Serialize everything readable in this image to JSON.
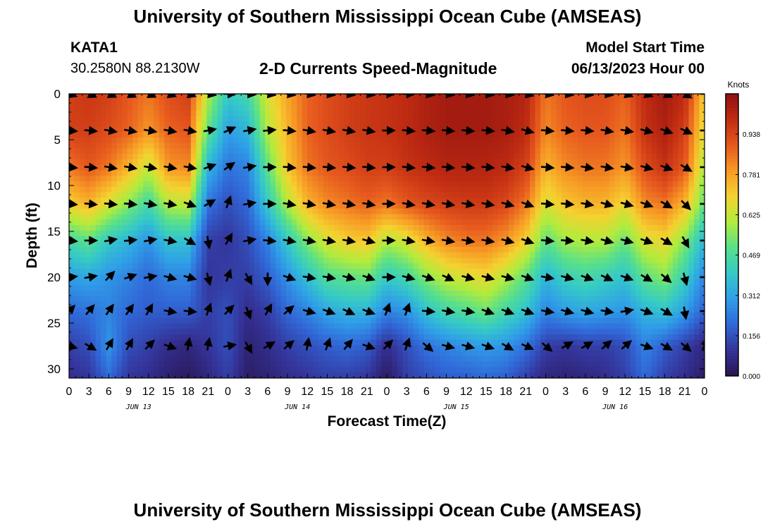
{
  "page": {
    "title": "University of Southern Mississippi Ocean Cube (AMSEAS)",
    "title_repeat": "University of Southern Mississippi Ocean Cube (AMSEAS)",
    "station_id": "KATA1",
    "station_coords": "30.2580N  88.2130W",
    "product": "2-D Currents Speed-Magnitude",
    "model_start_label": "Model Start Time",
    "model_start_value": "06/13/2023 Hour 00"
  },
  "chart_data": {
    "type": "heatmap",
    "title": "2-D Currents Speed-Magnitude",
    "xlabel": "Forecast Time(Z)",
    "ylabel": "Depth (ft)",
    "xlim": [
      0,
      96
    ],
    "ylim": [
      31,
      0
    ],
    "y_ticks": [
      0,
      5,
      10,
      15,
      20,
      25,
      30
    ],
    "x_tick_labels": [
      "0",
      "3",
      "6",
      "9",
      "12",
      "15",
      "18",
      "21",
      "0",
      "3",
      "6",
      "9",
      "12",
      "15",
      "18",
      "21",
      "0",
      "3",
      "6",
      "9",
      "12",
      "15",
      "18",
      "21",
      "0",
      "3",
      "6",
      "9",
      "12",
      "15",
      "18",
      "21",
      "0"
    ],
    "day_labels": [
      {
        "text": "JUN 13",
        "hour": 10.5
      },
      {
        "text": "JUN 14",
        "hour": 34.5
      },
      {
        "text": "JUN 15",
        "hour": 58.5
      },
      {
        "text": "JUN 16",
        "hour": 82.5
      }
    ],
    "colorbar": {
      "unit": "Knots",
      "ticks": [
        "0.000",
        "0.156",
        "0.312",
        "0.469",
        "0.625",
        "0.781",
        "0.938"
      ],
      "range": [
        0,
        1.094
      ]
    },
    "colormap": [
      "#2a1450",
      "#34349a",
      "#3168d8",
      "#2f9ee8",
      "#35c9c8",
      "#58e08a",
      "#b2ec3c",
      "#f4d230",
      "#f79a25",
      "#e6581e",
      "#c02c12",
      "#8e1010"
    ],
    "depths_ft": [
      0,
      4,
      8,
      12,
      16,
      20,
      23.7,
      27.5,
      31
    ],
    "times_h": [
      0,
      3,
      6,
      9,
      12,
      15,
      18,
      21,
      24,
      27,
      30,
      33,
      36,
      39,
      42,
      45,
      48,
      51,
      54,
      57,
      60,
      63,
      66,
      69,
      72,
      75,
      78,
      81,
      84,
      87,
      90,
      93,
      96
    ],
    "speed_knots": [
      [
        0.95,
        0.97,
        0.95,
        0.9,
        0.85,
        0.92,
        0.95,
        0.6,
        0.4,
        0.45,
        0.65,
        0.78,
        0.88,
        0.92,
        0.95,
        0.97,
        0.98,
        1.0,
        1.03,
        1.05,
        1.05,
        1.05,
        1.04,
        1.02,
        0.85,
        0.9,
        0.92,
        0.92,
        0.88,
        1.0,
        1.05,
        1.0,
        0.7
      ],
      [
        0.95,
        0.95,
        0.92,
        0.88,
        0.8,
        0.88,
        0.9,
        0.5,
        0.3,
        0.35,
        0.6,
        0.75,
        0.88,
        0.92,
        0.95,
        0.97,
        0.98,
        1.0,
        1.03,
        1.05,
        1.05,
        1.05,
        1.04,
        1.0,
        0.82,
        0.88,
        0.9,
        0.9,
        0.85,
        0.98,
        1.03,
        0.95,
        0.65
      ],
      [
        0.85,
        0.9,
        0.85,
        0.75,
        0.62,
        0.8,
        0.82,
        0.35,
        0.22,
        0.25,
        0.5,
        0.72,
        0.85,
        0.9,
        0.92,
        0.95,
        0.95,
        0.98,
        1.0,
        1.02,
        1.02,
        1.02,
        1.0,
        0.95,
        0.75,
        0.82,
        0.85,
        0.85,
        0.8,
        0.92,
        0.98,
        0.9,
        0.58
      ],
      [
        0.7,
        0.75,
        0.65,
        0.55,
        0.45,
        0.6,
        0.62,
        0.22,
        0.15,
        0.2,
        0.4,
        0.6,
        0.75,
        0.82,
        0.85,
        0.88,
        0.85,
        0.9,
        0.93,
        0.95,
        0.96,
        0.96,
        0.93,
        0.85,
        0.65,
        0.72,
        0.75,
        0.75,
        0.68,
        0.82,
        0.85,
        0.75,
        0.5
      ],
      [
        0.45,
        0.5,
        0.4,
        0.35,
        0.28,
        0.38,
        0.38,
        0.12,
        0.1,
        0.15,
        0.25,
        0.4,
        0.55,
        0.65,
        0.7,
        0.72,
        0.6,
        0.65,
        0.75,
        0.82,
        0.85,
        0.85,
        0.8,
        0.7,
        0.5,
        0.58,
        0.6,
        0.6,
        0.52,
        0.65,
        0.68,
        0.55,
        0.35
      ],
      [
        0.3,
        0.32,
        0.28,
        0.25,
        0.2,
        0.25,
        0.25,
        0.1,
        0.12,
        0.12,
        0.18,
        0.28,
        0.38,
        0.48,
        0.5,
        0.52,
        0.4,
        0.45,
        0.55,
        0.62,
        0.65,
        0.68,
        0.6,
        0.5,
        0.35,
        0.42,
        0.45,
        0.42,
        0.38,
        0.5,
        0.55,
        0.42,
        0.25
      ],
      [
        0.2,
        0.22,
        0.25,
        0.2,
        0.18,
        0.18,
        0.18,
        0.12,
        0.15,
        0.08,
        0.12,
        0.2,
        0.25,
        0.32,
        0.35,
        0.35,
        0.25,
        0.28,
        0.38,
        0.45,
        0.48,
        0.52,
        0.45,
        0.38,
        0.25,
        0.3,
        0.32,
        0.3,
        0.28,
        0.35,
        0.38,
        0.3,
        0.18
      ],
      [
        0.12,
        0.15,
        0.28,
        0.15,
        0.12,
        0.08,
        0.06,
        0.1,
        0.15,
        0.05,
        0.08,
        0.12,
        0.15,
        0.18,
        0.2,
        0.18,
        0.08,
        0.15,
        0.22,
        0.25,
        0.28,
        0.3,
        0.28,
        0.22,
        0.12,
        0.1,
        0.12,
        0.12,
        0.15,
        0.25,
        0.18,
        0.12,
        0.06
      ],
      [
        0.08,
        0.1,
        0.2,
        0.1,
        0.08,
        0.04,
        0.02,
        0.06,
        0.12,
        0.03,
        0.05,
        0.08,
        0.1,
        0.12,
        0.12,
        0.1,
        0.02,
        0.12,
        0.15,
        0.18,
        0.18,
        0.2,
        0.18,
        0.12,
        0.06,
        0.05,
        0.06,
        0.08,
        0.12,
        0.2,
        0.12,
        0.08,
        0.03
      ]
    ],
    "arrow_depths_ft": [
      0,
      4,
      8,
      12,
      16,
      20,
      23.7,
      27.5
    ],
    "arrow_times_h": [
      0,
      3,
      6,
      9,
      12,
      15,
      18,
      21,
      24,
      27,
      30,
      33,
      36,
      39,
      42,
      45,
      48,
      51,
      54,
      57,
      60,
      63,
      66,
      69,
      72,
      75,
      78,
      81,
      84,
      87,
      90,
      93,
      96
    ],
    "arrow_angle_deg": [
      [
        20,
        25,
        25,
        25,
        25,
        20,
        20,
        10,
        0,
        5,
        10,
        10,
        10,
        10,
        10,
        10,
        0,
        0,
        10,
        10,
        10,
        10,
        10,
        15,
        10,
        10,
        10,
        10,
        20,
        20,
        25,
        30,
        0
      ],
      [
        5,
        5,
        10,
        10,
        10,
        10,
        10,
        -10,
        -25,
        -10,
        -5,
        5,
        10,
        10,
        10,
        10,
        0,
        5,
        5,
        5,
        5,
        5,
        10,
        15,
        5,
        5,
        5,
        10,
        10,
        15,
        20,
        25,
        0
      ],
      [
        5,
        5,
        10,
        10,
        10,
        10,
        10,
        -20,
        -35,
        -10,
        0,
        5,
        5,
        5,
        5,
        5,
        0,
        5,
        5,
        5,
        5,
        5,
        10,
        15,
        5,
        5,
        10,
        10,
        10,
        15,
        20,
        30,
        0
      ],
      [
        5,
        5,
        5,
        5,
        10,
        10,
        20,
        -30,
        -70,
        -10,
        0,
        10,
        10,
        10,
        10,
        10,
        0,
        10,
        10,
        10,
        10,
        10,
        15,
        20,
        5,
        5,
        10,
        15,
        15,
        20,
        30,
        45,
        0
      ],
      [
        5,
        0,
        -10,
        -5,
        -10,
        10,
        30,
        80,
        -60,
        -10,
        5,
        10,
        10,
        10,
        10,
        15,
        0,
        10,
        10,
        10,
        10,
        10,
        15,
        20,
        5,
        5,
        10,
        15,
        15,
        20,
        30,
        60,
        0
      ],
      [
        -5,
        -10,
        -45,
        -20,
        -10,
        15,
        15,
        75,
        -70,
        60,
        90,
        20,
        10,
        10,
        15,
        20,
        0,
        15,
        20,
        25,
        15,
        15,
        15,
        20,
        10,
        15,
        20,
        25,
        20,
        30,
        40,
        75,
        0
      ],
      [
        -45,
        -50,
        -55,
        -55,
        -60,
        10,
        5,
        -70,
        -45,
        70,
        -60,
        -40,
        15,
        20,
        25,
        20,
        -70,
        -70,
        5,
        10,
        10,
        20,
        20,
        20,
        10,
        15,
        15,
        10,
        -10,
        20,
        30,
        80,
        0
      ],
      [
        15,
        30,
        -60,
        -60,
        -45,
        20,
        -80,
        -80,
        -10,
        60,
        -30,
        -40,
        -80,
        -70,
        -50,
        20,
        -45,
        -70,
        40,
        15,
        15,
        20,
        30,
        25,
        40,
        -30,
        -30,
        -40,
        -40,
        20,
        30,
        40,
        -60
      ]
    ]
  }
}
